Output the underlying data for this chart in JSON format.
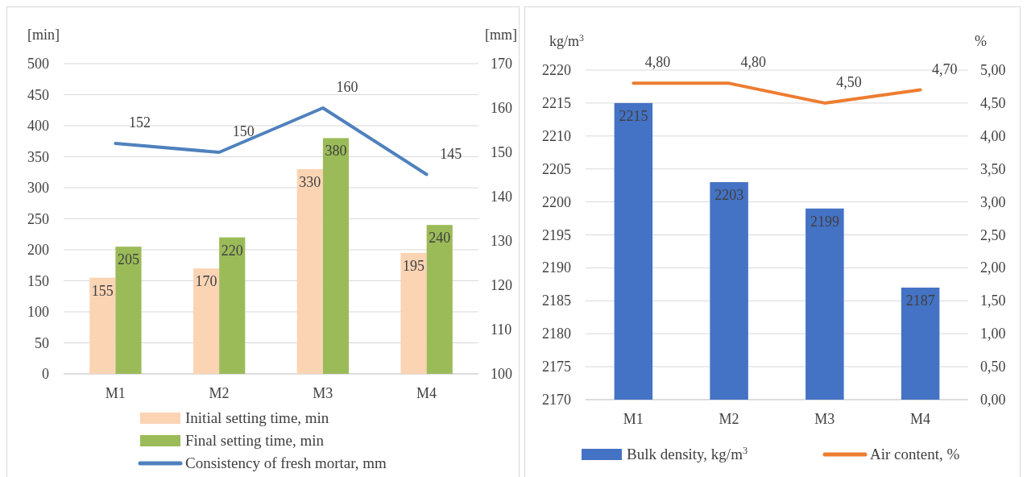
{
  "chart_data": [
    {
      "type": "bar",
      "categories": [
        "M1",
        "M2",
        "M3",
        "M4"
      ],
      "ylabel": "[min]",
      "y2label": "[mm]",
      "ylim": [
        0,
        500
      ],
      "yticks": [
        0,
        50,
        100,
        150,
        200,
        250,
        300,
        350,
        400,
        450,
        500
      ],
      "y2lim": [
        100,
        170
      ],
      "y2ticks": [
        100,
        110,
        120,
        130,
        140,
        150,
        160,
        170
      ],
      "grid": "y",
      "legend": "bottom",
      "data_labels": true,
      "series": [
        {
          "name": "Initial setting time, min",
          "color": "#fbd4b4",
          "values": [
            155,
            170,
            330,
            195
          ]
        },
        {
          "name": "Final setting time, min",
          "color": "#9bbb59",
          "values": [
            205,
            220,
            380,
            240
          ]
        },
        {
          "type": "line",
          "axis": "y2",
          "name": "Consistency of fresh mortar, mm",
          "color": "#4f81bd",
          "values": [
            152,
            150,
            160,
            145
          ]
        }
      ]
    },
    {
      "type": "bar",
      "categories": [
        "M1",
        "M2",
        "M3",
        "M4"
      ],
      "ylabel": "kg/m$^{3}$",
      "y2label": "%",
      "ylim": [
        2170,
        2220
      ],
      "yticks": [
        2170,
        2175,
        2180,
        2185,
        2190,
        2195,
        2200,
        2205,
        2210,
        2215,
        2220
      ],
      "y2lim": [
        0,
        5
      ],
      "y2ticks": [
        {
          "value": 0,
          "label": "0,00"
        },
        {
          "value": 0.5,
          "label": "0,50"
        },
        {
          "value": 1,
          "label": "1,00"
        },
        {
          "value": 1.5,
          "label": "1,50"
        },
        {
          "value": 2,
          "label": "2,00"
        },
        {
          "value": 2.5,
          "label": "2,50"
        },
        {
          "value": 3,
          "label": "3,00"
        },
        {
          "value": 3.5,
          "label": "3,50"
        },
        {
          "value": 4,
          "label": "4,00"
        },
        {
          "value": 4.5,
          "label": "4,50"
        },
        {
          "value": 5,
          "label": "5,00"
        }
      ],
      "grid": "y",
      "legend": "bottom",
      "series": [
        {
          "name": "Bulk density, kg/m$^{3}$",
          "color": "#4472c4",
          "values": [
            2215,
            2203,
            2199,
            2187
          ],
          "value_labels": [
            "2215",
            "2203",
            "2199",
            "2187"
          ]
        },
        {
          "type": "line",
          "axis": "y2",
          "name": "Air content, %",
          "color": "#ed7d31",
          "values": [
            4.8,
            4.8,
            4.5,
            4.7
          ],
          "value_labels": [
            "4,80",
            "4,80",
            "4,50",
            "4,70"
          ]
        }
      ]
    }
  ]
}
